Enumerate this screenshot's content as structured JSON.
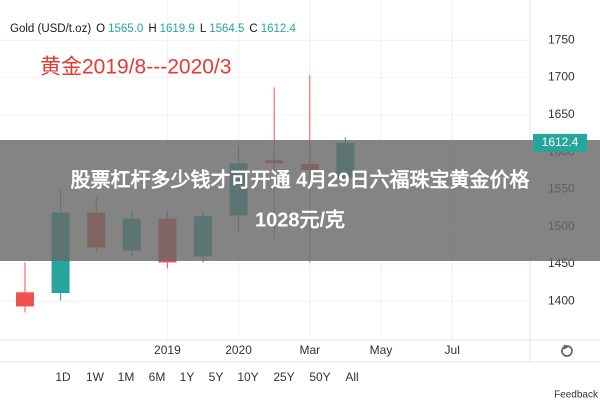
{
  "header": {
    "symbol": "Gold (USD/t.oz)",
    "fields": [
      {
        "key": "O",
        "value": "1565.0"
      },
      {
        "key": "H",
        "value": "1619.9"
      },
      {
        "key": "L",
        "value": "1564.5"
      },
      {
        "key": "C",
        "value": "1612.4"
      }
    ]
  },
  "chart_data": {
    "type": "candlestick",
    "title": "黄金2019/8---2020/3",
    "categories": [
      null,
      null,
      null,
      null,
      "2019",
      null,
      "2020",
      null,
      "Mar",
      null,
      "May",
      null,
      "Jul",
      null
    ],
    "open": [
      1412,
      1411,
      1519,
      1468,
      1511,
      1460,
      1515,
      1589,
      1584,
      1565.0,
      null,
      null,
      null,
      null
    ],
    "high": [
      1452,
      1549,
      1540,
      1521,
      1521,
      1521,
      1609,
      1687,
      1703,
      1619.9,
      null,
      null,
      null,
      null
    ],
    "low": [
      1385,
      1401,
      1466,
      1459,
      1444,
      1452,
      1493,
      1482,
      1452,
      1564.5,
      null,
      null,
      null,
      null
    ],
    "close": [
      1393,
      1519,
      1472,
      1511,
      1452,
      1514,
      1585,
      1585,
      1576,
      1612.4,
      null,
      null,
      null,
      null
    ],
    "up_color": "#26a69a",
    "down_color": "#ef5350",
    "ylim": [
      1348,
      1804
    ],
    "yticks": [
      1400,
      1450,
      1500,
      1550,
      1600,
      1650,
      1700,
      1750
    ]
  },
  "overlay": {
    "lines": [
      "股票杠杆多少钱才可开通 4月29日六福珠宝黄金价格",
      "1028元/克"
    ]
  },
  "toolbar": {
    "ranges": [
      "1D",
      "1W",
      "1M",
      "6M",
      "1Y",
      "5Y",
      "10Y",
      "25Y",
      "50Y",
      "All"
    ],
    "feedback": "Feedback"
  }
}
